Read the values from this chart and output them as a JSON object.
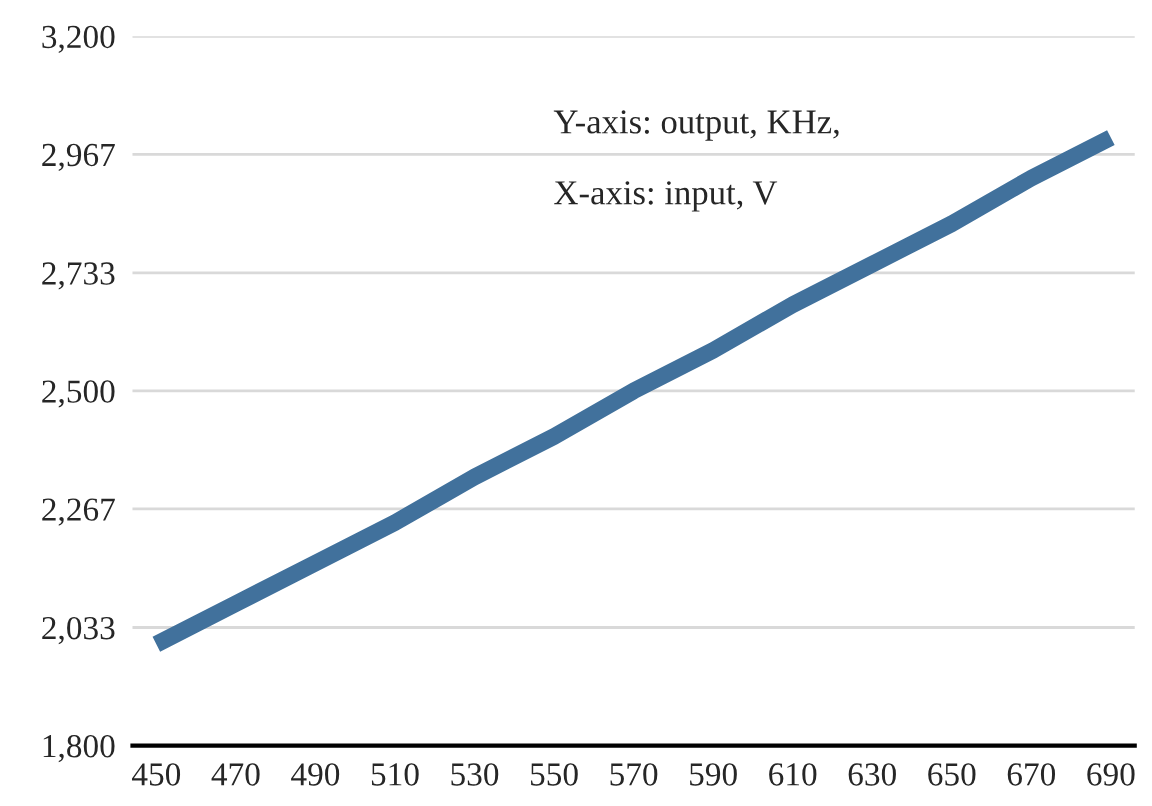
{
  "chart_data": {
    "type": "line",
    "categories": [
      "450",
      "470",
      "490",
      "510",
      "530",
      "550",
      "570",
      "590",
      "610",
      "630",
      "650",
      "670",
      "690"
    ],
    "series": [
      {
        "color": "#41719c",
        "values": [
          2000,
          2080,
          2160,
          2240,
          2330,
          2410,
          2500,
          2580,
          2670,
          2750,
          2830,
          2920,
          3000
        ]
      }
    ],
    "ylim": [
      1800,
      3200
    ],
    "yticks": [
      {
        "value": 1800,
        "label": "1,800"
      },
      {
        "value": 2033,
        "label": "2,033"
      },
      {
        "value": 2267,
        "label": "2,267"
      },
      {
        "value": 2500,
        "label": "2,500"
      },
      {
        "value": 2733,
        "label": "2,733"
      },
      {
        "value": 2967,
        "label": "2,967"
      },
      {
        "value": 3200,
        "label": "3,200"
      }
    ],
    "grid": "y",
    "annotations": [
      "Y-axis: output, KHz,",
      "X-axis: input, V"
    ]
  }
}
